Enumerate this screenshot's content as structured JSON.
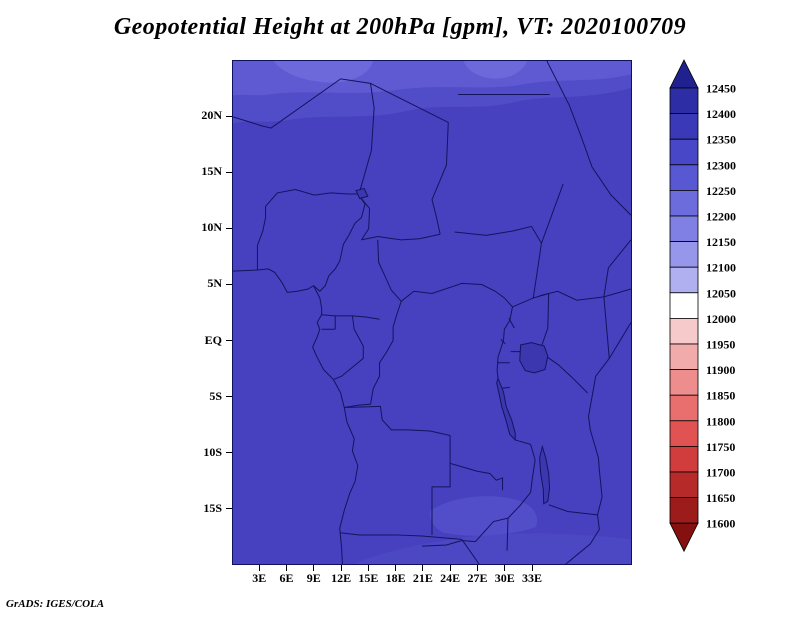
{
  "title": "Geopotential Height at 200hPa [gpm], VT: 2020100709",
  "footer": "GrADS: IGES/COLA",
  "chart_data": {
    "type": "heatmap",
    "title": "Geopotential Height at 200hPa [gpm], VT: 2020100709",
    "variable": "Geopotential Height",
    "level": "200hPa",
    "units": "gpm",
    "valid_time": "2020100709",
    "region": "Africa (approx. 0E-44E, 20S-25N)",
    "lat_ticks": [
      "20N",
      "15N",
      "10N",
      "5N",
      "EQ",
      "5S",
      "10S",
      "15S"
    ],
    "lat_values": [
      20,
      15,
      10,
      5,
      0,
      -5,
      -10,
      -15
    ],
    "lon_ticks": [
      "3E",
      "6E",
      "9E",
      "12E",
      "15E",
      "18E",
      "21E",
      "24E",
      "27E",
      "30E",
      "33E"
    ],
    "lon_values": [
      3,
      6,
      9,
      12,
      15,
      18,
      21,
      24,
      27,
      30,
      33
    ],
    "lat_range": [
      -20,
      25
    ],
    "lon_range": [
      0,
      44
    ],
    "legend_position": "right",
    "field_summary": "Field is nearly uniform dark blue (approx. 12300-12350 gpm) over most of the domain; slightly lower heights (approx. 12150-12300 gpm, lighter blue) along the northern edge near 20-25N and a mildly lighter patch near 14-17S, 22-34E.",
    "colorbar": {
      "labels": [
        12450,
        12400,
        12350,
        12300,
        12250,
        12200,
        12150,
        12100,
        12050,
        12000,
        11950,
        11900,
        11850,
        11800,
        11750,
        11700,
        11650,
        11600
      ],
      "segment_colors": [
        "#2d2da6",
        "#3a3ab9",
        "#4747c7",
        "#5858d2",
        "#6c6cdc",
        "#8080e4",
        "#9696eb",
        "#b0b0f1",
        "#ffffff",
        "#f6caca",
        "#f2abab",
        "#ee8d8d",
        "#e96f6f",
        "#e15252",
        "#d13c3c",
        "#b62a2a",
        "#9c1b1b"
      ],
      "arrow_top_color": "#20208f",
      "arrow_bottom_color": "#841010",
      "outline_color": "#000000"
    },
    "fills": {
      "main": "#4741bf",
      "band1": "#514cc8",
      "band2": "#5f5ad1",
      "band3": "#6e69da",
      "south_patch": "#524dc9",
      "bottom_strip": "#4c47c3",
      "lake": "#3c37ae"
    },
    "border_color": "#14145e",
    "frame_color": "#101060"
  }
}
